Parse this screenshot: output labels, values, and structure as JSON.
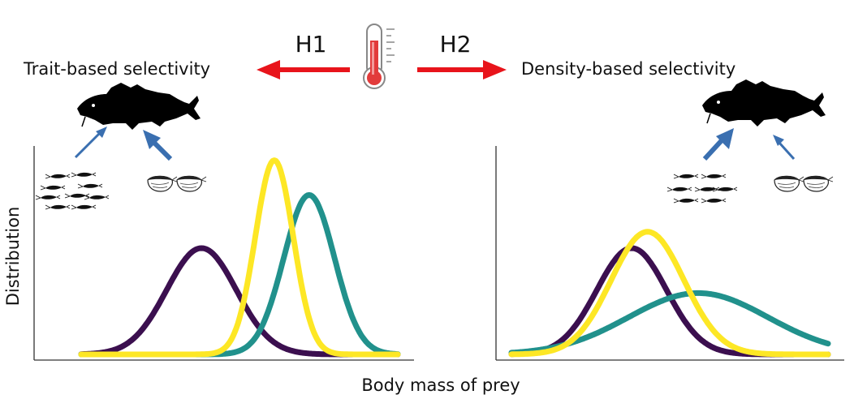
{
  "header": {
    "h1_label": "H1",
    "h2_label": "H2",
    "left_title": "Trait-based selectivity",
    "right_title": "Density-based selectivity",
    "thermometer_icon": "thermometer-icon",
    "arrow_color": "#e8141b"
  },
  "axes": {
    "ylabel": "Distribution",
    "xlabel": "Body mass of prey"
  },
  "icons": {
    "fish": "fish-silhouette-icon",
    "small_prey": "small-shrimp-group-icon",
    "large_prey": "large-shrimp-pair-icon",
    "selection_arrow_color": "#3a6fb0"
  },
  "colors": {
    "purple": "#3b0f4f",
    "teal": "#21918c",
    "yellow": "#fde725"
  },
  "chart_data": [
    {
      "type": "line",
      "panel": "left",
      "title": "Trait-based selectivity",
      "xlabel": "Body mass of prey",
      "ylabel": "Distribution",
      "xlim": [
        0,
        100
      ],
      "ylim": [
        0,
        100
      ],
      "series": [
        {
          "color": "#3b0f4f",
          "mu": 38,
          "sigma": 11,
          "peak": 52
        },
        {
          "color": "#fde725",
          "mu": 61,
          "sigma": 6,
          "peak": 95
        },
        {
          "color": "#21918c",
          "mu": 72,
          "sigma": 8,
          "peak": 78
        }
      ]
    },
    {
      "type": "line",
      "panel": "right",
      "xlim": [
        0,
        100
      ],
      "ylim": [
        0,
        100
      ],
      "series": [
        {
          "color": "#3b0f4f",
          "mu": 38,
          "sigma": 11,
          "peak": 52
        },
        {
          "color": "#fde725",
          "mu": 43,
          "sigma": 11.5,
          "peak": 60
        },
        {
          "color": "#21918c",
          "mu": 59,
          "sigma": 22,
          "peak": 30
        }
      ]
    }
  ]
}
